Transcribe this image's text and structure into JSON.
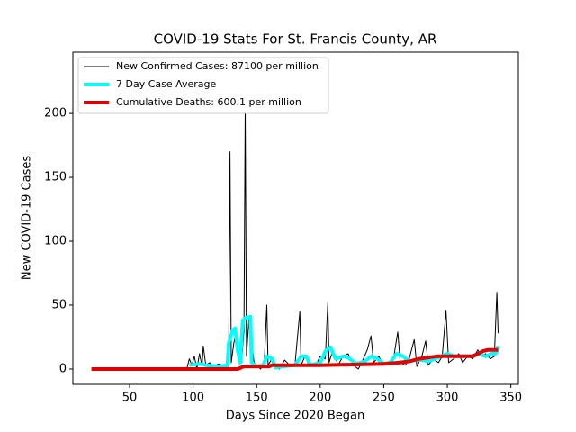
{
  "chart_data": {
    "type": "line",
    "title": "COVID-19 Stats For St. Francis County, AR",
    "x_label": "Days Since 2020 Began",
    "y_label": "New COVID-19 Cases",
    "xlim": [
      5.4,
      355.9
    ],
    "ylim": [
      -12,
      248
    ],
    "xticks": [
      50,
      100,
      150,
      200,
      250,
      300,
      350
    ],
    "yticks": [
      0,
      50,
      100,
      150,
      200
    ],
    "legend": "upper left",
    "series": [
      {
        "name": "New Confirmed Cases: 87100 per million",
        "color": "#000000",
        "width": 1,
        "x": [
          95,
          97,
          99,
          101,
          103,
          105,
          107,
          108,
          110,
          113,
          116,
          120,
          124,
          128,
          129,
          130,
          132,
          134,
          136,
          138,
          140,
          141,
          142,
          144,
          146,
          148,
          150,
          153,
          156,
          158,
          159,
          162,
          165,
          168,
          172,
          176,
          180,
          184,
          185,
          188,
          192,
          196,
          200,
          204,
          206,
          207,
          210,
          214,
          218,
          222,
          226,
          230,
          234,
          237,
          240,
          242,
          246,
          250,
          254,
          258,
          261,
          263,
          267,
          270,
          274,
          276,
          280,
          283,
          285,
          289,
          293,
          296,
          299,
          301,
          305,
          309,
          312,
          316,
          320,
          324,
          327,
          330,
          334,
          337,
          339,
          340
        ],
        "values": [
          0,
          8,
          3,
          10,
          0,
          12,
          2,
          18,
          3,
          5,
          2,
          4,
          3,
          0,
          170,
          5,
          20,
          30,
          10,
          5,
          30,
          205,
          10,
          40,
          20,
          5,
          3,
          0,
          5,
          50,
          3,
          8,
          2,
          0,
          7,
          3,
          2,
          45,
          3,
          10,
          5,
          2,
          10,
          8,
          52,
          5,
          15,
          3,
          10,
          12,
          3,
          0,
          8,
          15,
          26,
          5,
          10,
          3,
          5,
          10,
          29,
          5,
          3,
          8,
          23,
          2,
          10,
          22,
          3,
          8,
          5,
          10,
          46,
          5,
          8,
          12,
          5,
          10,
          8,
          15,
          10,
          12,
          8,
          10,
          60,
          28
        ]
      },
      {
        "name": "7 Day Case Average",
        "color": "#00ffff",
        "width": 4,
        "x": [
          97,
          105,
          110,
          120,
          127,
          128,
          131,
          133,
          135,
          137,
          139,
          141,
          145,
          146,
          150,
          155,
          158,
          162,
          165,
          170,
          180,
          185,
          189,
          192,
          200,
          204,
          208,
          212,
          218,
          222,
          228,
          235,
          240,
          245,
          250,
          255,
          260,
          265,
          270,
          275,
          280,
          285,
          290,
          295,
          300,
          305,
          310,
          315,
          320,
          325,
          330,
          335,
          338,
          340
        ],
        "values": [
          3,
          4,
          3,
          2,
          3,
          20,
          30,
          32,
          15,
          5,
          38,
          40,
          41,
          5,
          2,
          3,
          10,
          8,
          1,
          2,
          3,
          10,
          10,
          3,
          5,
          14,
          17,
          8,
          10,
          9,
          4,
          6,
          10,
          8,
          4,
          5,
          12,
          10,
          6,
          7,
          7,
          6,
          8,
          10,
          12,
          10,
          10,
          10,
          10,
          12,
          10,
          12,
          12,
          18
        ]
      },
      {
        "name": "Cumulative Deaths: 600.1 per million",
        "color": "#e00000",
        "width": 4,
        "x": [
          20,
          135,
          140,
          160,
          162,
          200,
          250,
          262,
          270,
          278,
          285,
          292,
          320,
          322,
          328,
          332,
          340
        ],
        "values": [
          0,
          0,
          2,
          2,
          3,
          3,
          4,
          5,
          6,
          8,
          9,
          10,
          10,
          11,
          14,
          15,
          15
        ]
      }
    ]
  }
}
